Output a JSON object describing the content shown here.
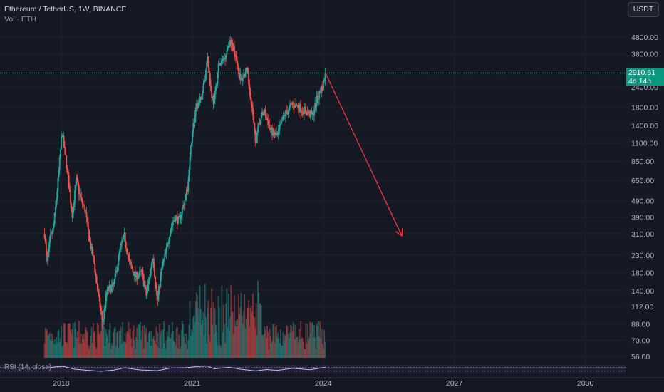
{
  "header": {
    "title": "Ethereum / TetherUS, 1W, BINANCE",
    "volume_label": "Vol · ETH",
    "currency_button": "USDT"
  },
  "price_tag": {
    "price": "2910.61",
    "countdown": "4d 14h"
  },
  "rsi": {
    "label": "RSI (14, close)"
  },
  "colors": {
    "background": "#151924",
    "up": "#26a69a",
    "down": "#ef5350",
    "projection": "#f23645",
    "price_line": "#089981",
    "rsi": "#c9b6f2"
  },
  "chart_data": {
    "type": "candlestick",
    "title": "Ethereum / TetherUS, 1W, BINANCE",
    "y_scale": "log",
    "y_ticks": [
      4800,
      3800,
      2400,
      1800,
      1400,
      1100,
      850,
      650,
      490,
      390,
      310,
      230,
      180,
      140,
      112,
      88,
      70,
      56
    ],
    "y_tick_labels": [
      "4800.00",
      "3800.00",
      "2400.00",
      "1800.00",
      "1400.00",
      "1100.00",
      "850.00",
      "650.00",
      "490.00",
      "390.00",
      "310.00",
      "230.00",
      "180.00",
      "140.00",
      "112.00",
      "88.00",
      "70.00",
      "56.00"
    ],
    "x_ticks": [
      "2018",
      "2021",
      "2024",
      "2027",
      "2030"
    ],
    "x_range": [
      2016.6,
      2031.8
    ],
    "last_price": 2910.61,
    "price_path": [
      {
        "x": 2017.62,
        "y": 310
      },
      {
        "x": 2017.68,
        "y": 200
      },
      {
        "x": 2017.75,
        "y": 290
      },
      {
        "x": 2017.82,
        "y": 330
      },
      {
        "x": 2017.88,
        "y": 470
      },
      {
        "x": 2017.94,
        "y": 700
      },
      {
        "x": 2018.02,
        "y": 1300
      },
      {
        "x": 2018.05,
        "y": 1100
      },
      {
        "x": 2018.1,
        "y": 900
      },
      {
        "x": 2018.18,
        "y": 600
      },
      {
        "x": 2018.25,
        "y": 400
      },
      {
        "x": 2018.35,
        "y": 650
      },
      {
        "x": 2018.45,
        "y": 500
      },
      {
        "x": 2018.55,
        "y": 430
      },
      {
        "x": 2018.65,
        "y": 280
      },
      {
        "x": 2018.75,
        "y": 210
      },
      {
        "x": 2018.85,
        "y": 130
      },
      {
        "x": 2018.95,
        "y": 90
      },
      {
        "x": 2019.05,
        "y": 140
      },
      {
        "x": 2019.2,
        "y": 150
      },
      {
        "x": 2019.35,
        "y": 250
      },
      {
        "x": 2019.45,
        "y": 300
      },
      {
        "x": 2019.55,
        "y": 210
      },
      {
        "x": 2019.7,
        "y": 170
      },
      {
        "x": 2019.85,
        "y": 180
      },
      {
        "x": 2019.95,
        "y": 130
      },
      {
        "x": 2020.1,
        "y": 230
      },
      {
        "x": 2020.2,
        "y": 120
      },
      {
        "x": 2020.3,
        "y": 190
      },
      {
        "x": 2020.4,
        "y": 240
      },
      {
        "x": 2020.5,
        "y": 330
      },
      {
        "x": 2020.6,
        "y": 390
      },
      {
        "x": 2020.7,
        "y": 370
      },
      {
        "x": 2020.8,
        "y": 460
      },
      {
        "x": 2020.9,
        "y": 600
      },
      {
        "x": 2021.0,
        "y": 1300
      },
      {
        "x": 2021.1,
        "y": 1800
      },
      {
        "x": 2021.2,
        "y": 2000
      },
      {
        "x": 2021.3,
        "y": 2800
      },
      {
        "x": 2021.35,
        "y": 3800
      },
      {
        "x": 2021.42,
        "y": 2300
      },
      {
        "x": 2021.5,
        "y": 1900
      },
      {
        "x": 2021.6,
        "y": 3200
      },
      {
        "x": 2021.72,
        "y": 3500
      },
      {
        "x": 2021.85,
        "y": 4500
      },
      {
        "x": 2021.92,
        "y": 4200
      },
      {
        "x": 2022.0,
        "y": 3800
      },
      {
        "x": 2022.1,
        "y": 2600
      },
      {
        "x": 2022.25,
        "y": 3000
      },
      {
        "x": 2022.35,
        "y": 2000
      },
      {
        "x": 2022.45,
        "y": 1100
      },
      {
        "x": 2022.55,
        "y": 1500
      },
      {
        "x": 2022.65,
        "y": 1700
      },
      {
        "x": 2022.8,
        "y": 1300
      },
      {
        "x": 2022.95,
        "y": 1200
      },
      {
        "x": 2023.1,
        "y": 1600
      },
      {
        "x": 2023.3,
        "y": 1900
      },
      {
        "x": 2023.45,
        "y": 1800
      },
      {
        "x": 2023.6,
        "y": 1700
      },
      {
        "x": 2023.75,
        "y": 1600
      },
      {
        "x": 2023.85,
        "y": 2000
      },
      {
        "x": 2023.95,
        "y": 2300
      },
      {
        "x": 2024.0,
        "y": 2500
      },
      {
        "x": 2024.05,
        "y": 2910.61
      }
    ],
    "projection_arrow": {
      "from": {
        "x": 2024.05,
        "y": 2910.61
      },
      "to": {
        "x": 2025.8,
        "y": 300
      }
    },
    "rsi_path": [
      {
        "x": 2017.62,
        "y": 62
      },
      {
        "x": 2017.9,
        "y": 78
      },
      {
        "x": 2018.05,
        "y": 82
      },
      {
        "x": 2018.3,
        "y": 50
      },
      {
        "x": 2018.6,
        "y": 38
      },
      {
        "x": 2018.9,
        "y": 25
      },
      {
        "x": 2019.2,
        "y": 40
      },
      {
        "x": 2019.45,
        "y": 66
      },
      {
        "x": 2019.8,
        "y": 42
      },
      {
        "x": 2020.2,
        "y": 32
      },
      {
        "x": 2020.5,
        "y": 62
      },
      {
        "x": 2020.85,
        "y": 66
      },
      {
        "x": 2021.1,
        "y": 80
      },
      {
        "x": 2021.35,
        "y": 86
      },
      {
        "x": 2021.5,
        "y": 54
      },
      {
        "x": 2021.85,
        "y": 72
      },
      {
        "x": 2022.1,
        "y": 50
      },
      {
        "x": 2022.45,
        "y": 30
      },
      {
        "x": 2022.7,
        "y": 46
      },
      {
        "x": 2022.95,
        "y": 36
      },
      {
        "x": 2023.3,
        "y": 60
      },
      {
        "x": 2023.7,
        "y": 44
      },
      {
        "x": 2024.05,
        "y": 72
      }
    ]
  }
}
